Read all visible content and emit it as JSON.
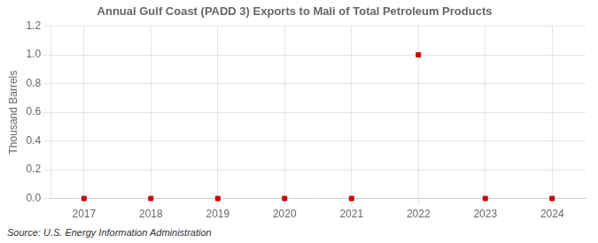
{
  "chart_data": {
    "type": "scatter",
    "title": "Annual Gulf Coast (PADD 3) Exports to Mali of Total Petroleum Products",
    "y_label": "Thousand Barrels",
    "annotation": "Source: U.S. Energy Information Administration",
    "x": [
      2017,
      2018,
      2019,
      2020,
      2021,
      2022,
      2023,
      2024
    ],
    "values": [
      0,
      0,
      0,
      0,
      0,
      1.0,
      0,
      0
    ],
    "color": "#cc0000",
    "marker": "square",
    "xlim": [
      2016.5,
      2024.5
    ],
    "xticks": [
      2017,
      2018,
      2019,
      2020,
      2021,
      2022,
      2023,
      2024
    ],
    "ylim": [
      0,
      1.2
    ],
    "yticks": [
      {
        "value": 0,
        "label": "0.0"
      },
      0.2,
      0.4,
      0.6,
      0.8,
      {
        "value": 1,
        "label": "1.0"
      },
      1.2
    ],
    "grid": true
  }
}
